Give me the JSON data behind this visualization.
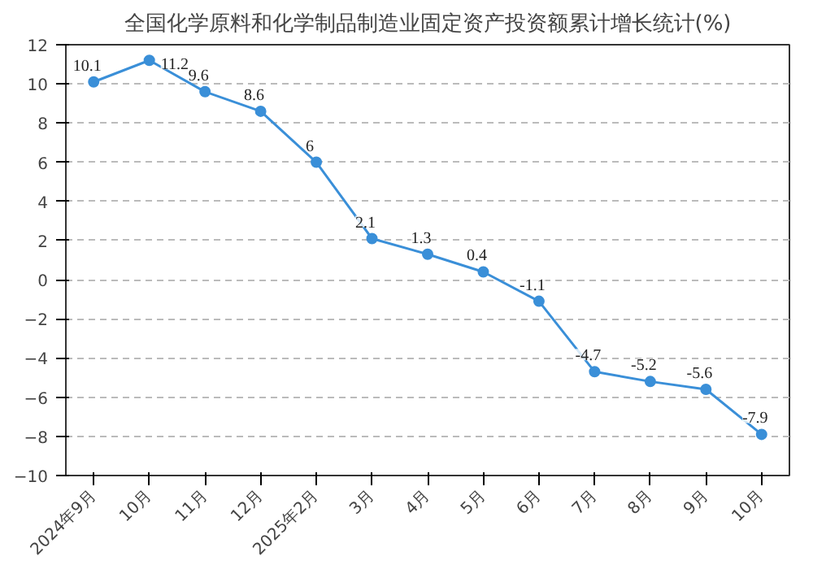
{
  "chart_data": {
    "type": "line",
    "title": "全国化学原料和化学制品制造业固定资产投资额累计增长统计(%)",
    "categories": [
      "2024年9月",
      "10月",
      "11月",
      "12月",
      "2025年2月",
      "3月",
      "4月",
      "5月",
      "6月",
      "7月",
      "8月",
      "9月",
      "10月"
    ],
    "series": [
      {
        "color": "#3a8fd8",
        "values": [
          10.1,
          11.2,
          9.6,
          8.6,
          6,
          2.1,
          1.3,
          0.4,
          -1.1,
          -4.7,
          -5.2,
          -5.6,
          -7.9
        ]
      }
    ],
    "ylim": [
      -10,
      12
    ],
    "yticks": [
      -10,
      -8,
      -6,
      -4,
      -2,
      0,
      2,
      4,
      6,
      8,
      10,
      12
    ],
    "grid": "y",
    "marker": "circle",
    "line_style": "solid",
    "data_labels": true
  }
}
